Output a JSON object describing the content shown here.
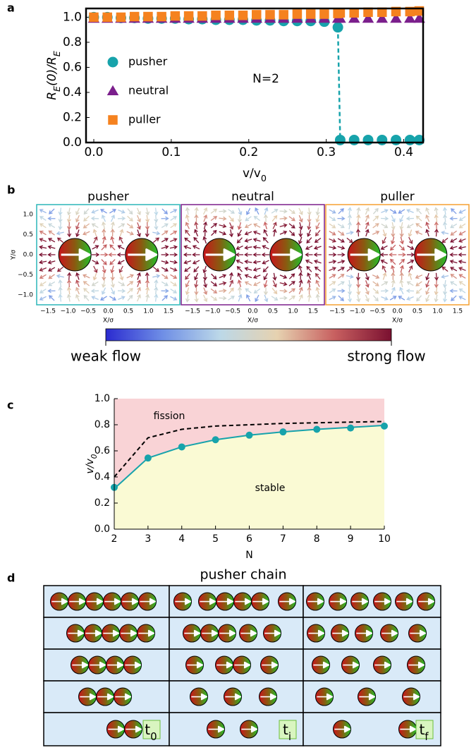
{
  "panel_labels": [
    "a",
    "b",
    "c",
    "d"
  ],
  "chart_data": [
    {
      "type": "scatter",
      "x": [
        0,
        0.0175,
        0.035,
        0.0525,
        0.07,
        0.0875,
        0.105,
        0.1225,
        0.14,
        0.1575,
        0.175,
        0.1925,
        0.21,
        0.2275,
        0.245,
        0.2625,
        0.28,
        0.2975,
        0.315,
        0.318,
        0.336,
        0.354,
        0.372,
        0.39,
        0.408,
        0.42
      ],
      "series": [
        {
          "name": "pusher",
          "color": "#17a3ab",
          "marker": "circle",
          "values": [
            1.0,
            1.0,
            0.995,
            0.995,
            0.99,
            0.99,
            0.99,
            0.985,
            0.985,
            0.98,
            0.98,
            0.98,
            0.975,
            0.975,
            0.97,
            0.97,
            0.97,
            0.965,
            0.92,
            0.02,
            0.02,
            0.02,
            0.02,
            0.02,
            0.02,
            0.02
          ]
        },
        {
          "name": "neutral",
          "color": "#7b1f8c",
          "marker": "triangle",
          "values": [
            0.99,
            0.99,
            0.99,
            0.99,
            0.99,
            0.99,
            0.99,
            0.99,
            0.99,
            0.99,
            0.99,
            0.99,
            0.99,
            0.99,
            0.99,
            0.99,
            0.99,
            0.99,
            0.99,
            0.99,
            0.99,
            0.99,
            0.99,
            0.99,
            0.99,
            0.99
          ]
        },
        {
          "name": "puller",
          "color": "#f5821f",
          "marker": "square",
          "values": [
            1.0,
            1.0,
            1.0,
            1.005,
            1.005,
            1.005,
            1.01,
            1.01,
            1.01,
            1.015,
            1.015,
            1.015,
            1.02,
            1.02,
            1.02,
            1.025,
            1.025,
            1.025,
            1.03,
            1.035,
            1.035,
            1.04,
            1.04,
            1.045,
            1.045,
            1.05
          ]
        }
      ],
      "xlim": [
        -0.01,
        0.425
      ],
      "ylim": [
        0,
        1.07
      ],
      "xticks": [
        {
          "value": 0,
          "label": "0.0"
        },
        0.1,
        0.2,
        0.3,
        0.4
      ],
      "yticks": [
        {
          "value": 0,
          "label": "0.0"
        },
        0.2,
        0.4,
        0.6,
        0.8,
        {
          "value": 1,
          "label": "1.0"
        }
      ],
      "x_label": [
        "v/v",
        "0"
      ],
      "y_label": [
        "R",
        "E",
        "(0)/R",
        "E"
      ],
      "annotations": [
        "N=2"
      ],
      "legend": "left"
    },
    {
      "type": "scatter",
      "x": [
        2,
        3,
        4,
        5,
        6,
        7,
        8,
        9,
        10
      ],
      "series": [
        {
          "color": "#17a3ab",
          "style": "line",
          "values": [
            0.31,
            0.545,
            0.63,
            0.685,
            0.72,
            0.745,
            0.765,
            0.78,
            0.795
          ]
        },
        {
          "color": "#000000",
          "style": "dashed",
          "values": [
            0.4,
            0.7,
            0.765,
            0.79,
            0.8,
            0.81,
            0.815,
            0.82,
            0.825
          ]
        },
        {
          "color": "#17a3ab",
          "marker": "circle",
          "values": [
            0.32,
            0.545,
            0.63,
            0.685,
            0.72,
            0.745,
            0.765,
            0.775,
            0.79
          ]
        }
      ],
      "regions": {
        "above": "#f9d3d6",
        "below": "#fafad4"
      },
      "xlim": [
        2,
        10
      ],
      "ylim": [
        0,
        1
      ],
      "xticks": [
        2,
        3,
        4,
        5,
        6,
        7,
        8,
        9,
        10
      ],
      "yticks": [
        {
          "value": 0,
          "label": "0.0"
        },
        0.2,
        0.4,
        0.6,
        0.8,
        {
          "value": 1,
          "label": "1.0"
        }
      ],
      "x_label": [
        "N"
      ],
      "y_label": [
        "v/v",
        "0"
      ],
      "annotations": [
        "fission",
        "stable"
      ]
    }
  ],
  "flow_fields": {
    "panels": [
      {
        "title": "pusher",
        "color": "#2bb5b8"
      },
      {
        "title": "neutral",
        "color": "#7b1f8c"
      },
      {
        "title": "puller",
        "color": "#f5a030"
      }
    ],
    "x_ticks": [
      "−1.5",
      "−1.0",
      "−0.5",
      "0.0",
      "0.5",
      "1.0",
      "1.5"
    ],
    "y_ticks": [
      "1.0",
      "0.5",
      "0.0",
      "−0.5",
      "−1.0"
    ],
    "x_label": "X/σ",
    "y_label": "Y/σ",
    "colorbar": {
      "low_label": "weak flow",
      "high_label": "strong flow",
      "colors": [
        "#2b2bd0",
        "#6f8fe6",
        "#bcd8e8",
        "#e6d2b0",
        "#c86060",
        "#7a1030"
      ]
    }
  },
  "chain": {
    "title": "pusher chain",
    "time_labels": [
      [
        "t",
        "0"
      ],
      [
        "t",
        "i"
      ],
      [
        "t",
        "f"
      ]
    ]
  }
}
